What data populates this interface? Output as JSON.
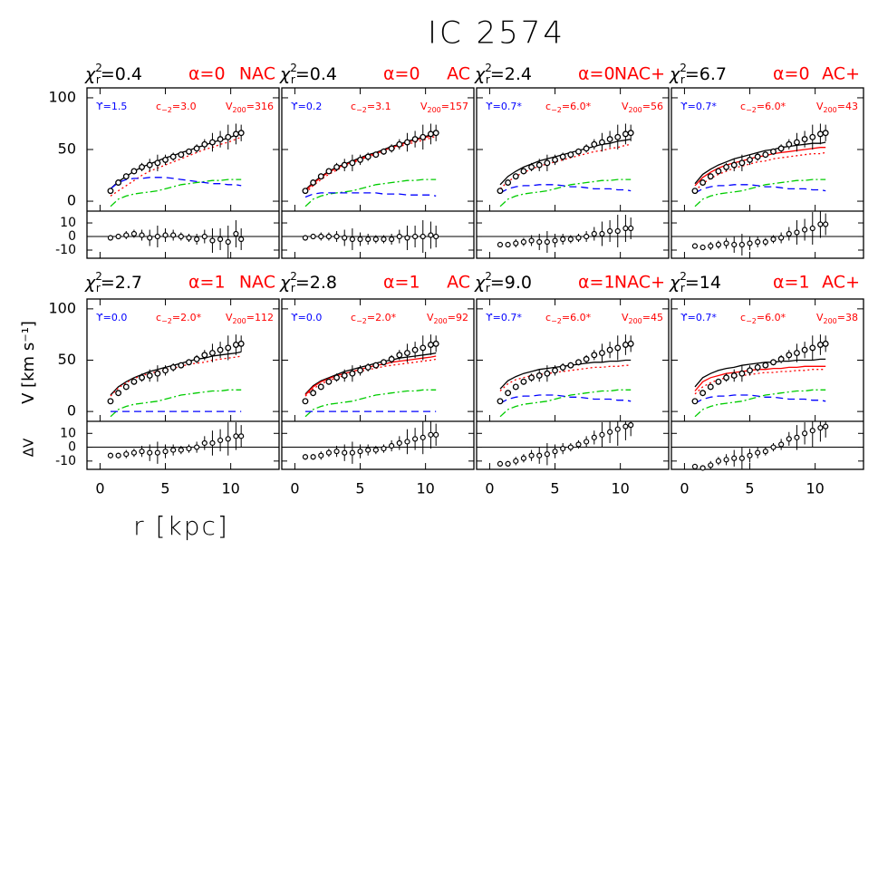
{
  "chart_data": {
    "type": "rotation-curve-panels",
    "title": "IC 2574",
    "x_label": "r [kpc]",
    "y_label": "V [km s⁻¹]",
    "residual_label": "ΔV",
    "chi_symbol": "χ",
    "chi_sup": "2",
    "chi_sub": "r",
    "c_symbol": "c",
    "c_sub": "−2",
    "v_symbol": "V",
    "v_sub": "200",
    "xlim": [
      -1,
      13.7
    ],
    "xticks": [
      0,
      5,
      10
    ],
    "ylim": [
      -9.6,
      109.6
    ],
    "yticks": [
      0,
      50,
      100
    ],
    "residual_ylim": [
      -16,
      18.7
    ],
    "residual_yticks": [
      -10,
      0,
      10
    ],
    "x": [
      0.8,
      1.4,
      2.0,
      2.6,
      3.2,
      3.8,
      4.4,
      5.0,
      5.6,
      6.2,
      6.8,
      7.4,
      8.0,
      8.6,
      9.2,
      9.8,
      10.4,
      10.8
    ],
    "observed": [
      10,
      18,
      24,
      29,
      33,
      35,
      37,
      40,
      43,
      45,
      48,
      51,
      55,
      57,
      60,
      62,
      65,
      66
    ],
    "errors": [
      2,
      2,
      3,
      3,
      4,
      6,
      8,
      5,
      4,
      3,
      3,
      4,
      5,
      9,
      8,
      12,
      10,
      8
    ],
    "gas": {
      "color": "#00cc00",
      "dash": "8,3,2,3",
      "values": [
        -5,
        2,
        5,
        7,
        8,
        9,
        10,
        12,
        14,
        16,
        17,
        18,
        19,
        20,
        20,
        21,
        21,
        21
      ]
    },
    "panels": [
      {
        "chi2": "=0.4",
        "alpha": "α=0",
        "model": "NAC",
        "upsilon": "ϒ=1.5",
        "c": "=3.0",
        "v200": "=316",
        "series": [
          {
            "color": "#000000",
            "dash": "none",
            "values": [
              12,
              19,
              24,
              29,
              33,
              36,
              39,
              42,
              44,
              47,
              49,
              52,
              54,
              57,
              59,
              61,
              64,
              65
            ]
          },
          {
            "color": "#ff0000",
            "dash": "2,3",
            "values": [
              5,
              10,
              15,
              20,
              25,
              29,
              32,
              35,
              38,
              41,
              44,
              47,
              50,
              52,
              55,
              57,
              60,
              62
            ]
          },
          {
            "color": "#0000ff",
            "dash": "8,5",
            "values": [
              12,
              18,
              21,
              22,
              22,
              23,
              23,
              23,
              22,
              21,
              20,
              19,
              18,
              17,
              17,
              16,
              16,
              15
            ]
          }
        ],
        "residuals": [
          -1,
          0,
          1,
          2,
          1,
          -1,
          0,
          1,
          1,
          0,
          -1,
          -2,
          0,
          -3,
          -2,
          -4,
          2,
          -2
        ]
      },
      {
        "chi2": "=0.4",
        "alpha": "α=0",
        "model": "AC",
        "upsilon": "ϒ=0.2",
        "c": "=3.1",
        "v200": "=157",
        "series": [
          {
            "color": "#000000",
            "dash": "none",
            "values": [
              11,
              18,
              24,
              29,
              33,
              36,
              39,
              42,
              45,
              47,
              50,
              53,
              55,
              58,
              60,
              62,
              64,
              66
            ]
          },
          {
            "color": "#ff0000",
            "dash": "none",
            "values": [
              10,
              17,
              23,
              28,
              32,
              35,
              38,
              41,
              44,
              46,
              49,
              52,
              54,
              57,
              59,
              61,
              63,
              65
            ]
          },
          {
            "color": "#ff0000",
            "dash": "2,3",
            "values": [
              8,
              15,
              21,
              26,
              30,
              34,
              37,
              40,
              43,
              45,
              48,
              50,
              53,
              55,
              57,
              59,
              61,
              63
            ]
          },
          {
            "color": "#0000ff",
            "dash": "8,5",
            "values": [
              4,
              7,
              8,
              8,
              8,
              8,
              8,
              8,
              8,
              8,
              7,
              7,
              7,
              6,
              6,
              6,
              6,
              5
            ]
          }
        ],
        "residuals": [
          -1,
          0,
          0,
          0,
          0,
          -1,
          -2,
          -2,
          -2,
          -2,
          -2,
          -2,
          0,
          -1,
          0,
          0,
          1,
          0
        ]
      },
      {
        "chi2": "=2.4",
        "alpha": "α=0",
        "model": "NAC+",
        "upsilon": "ϒ=0.7*",
        "c": "=6.0*",
        "v200": "=56",
        "series": [
          {
            "color": "#000000",
            "dash": "none",
            "values": [
              16,
              24,
              29,
              33,
              36,
              39,
              41,
              43,
              45,
              47,
              49,
              51,
              53,
              55,
              56,
              58,
              59,
              60
            ]
          },
          {
            "color": "#ff0000",
            "dash": "2,3",
            "values": [
              12,
              19,
              24,
              28,
              31,
              34,
              36,
              38,
              40,
              42,
              44,
              46,
              48,
              49,
              51,
              52,
              54,
              55
            ]
          },
          {
            "color": "#0000ff",
            "dash": "8,5",
            "values": [
              8,
              12,
              14,
              15,
              15,
              16,
              16,
              16,
              15,
              14,
              14,
              13,
              12,
              12,
              12,
              11,
              11,
              10
            ]
          }
        ],
        "residuals": [
          -6,
          -6,
          -5,
          -4,
          -3,
          -4,
          -4,
          -3,
          -2,
          -2,
          -1,
          0,
          2,
          2,
          4,
          4,
          6,
          6
        ]
      },
      {
        "chi2": "=6.7",
        "alpha": "α=0",
        "model": "AC+",
        "upsilon": "ϒ=0.7*",
        "c": "=6.0*",
        "v200": "=43",
        "series": [
          {
            "color": "#000000",
            "dash": "none",
            "values": [
              17,
              26,
              31,
              35,
              38,
              41,
              43,
              45,
              47,
              49,
              50,
              52,
              53,
              54,
              55,
              56,
              56,
              57
            ]
          },
          {
            "color": "#ff0000",
            "dash": "none",
            "values": [
              15,
              23,
              28,
              32,
              35,
              37,
              39,
              41,
              43,
              44,
              46,
              47,
              48,
              49,
              50,
              51,
              52,
              52
            ]
          },
          {
            "color": "#ff0000",
            "dash": "2,3",
            "values": [
              10,
              17,
              22,
              26,
              29,
              32,
              34,
              36,
              38,
              39,
              41,
              42,
              43,
              44,
              45,
              46,
              46,
              47
            ]
          },
          {
            "color": "#0000ff",
            "dash": "8,5",
            "values": [
              8,
              12,
              14,
              15,
              15,
              16,
              16,
              16,
              15,
              14,
              14,
              13,
              12,
              12,
              12,
              11,
              11,
              10
            ]
          }
        ],
        "residuals": [
          -7,
          -8,
          -7,
          -6,
          -5,
          -6,
          -6,
          -5,
          -4,
          -4,
          -2,
          -1,
          2,
          3,
          5,
          6,
          9,
          9
        ]
      },
      {
        "chi2": "=2.7",
        "alpha": "α=1",
        "model": "NAC",
        "upsilon": "ϒ=0.0",
        "c": "=2.0*",
        "v200": "=112",
        "series": [
          {
            "color": "#000000",
            "dash": "none",
            "values": [
              16,
              24,
              29,
              33,
              36,
              39,
              41,
              43,
              45,
              47,
              49,
              51,
              52,
              54,
              55,
              56,
              57,
              58
            ]
          },
          {
            "color": "#ff0000",
            "dash": "2,3",
            "values": [
              15,
              23,
              28,
              32,
              35,
              37,
              39,
              41,
              42,
              44,
              46,
              47,
              48,
              50,
              51,
              52,
              53,
              54
            ]
          },
          {
            "color": "#0000ff",
            "dash": "8,5",
            "values": [
              0,
              0,
              0,
              0,
              0,
              0,
              0,
              0,
              0,
              0,
              0,
              0,
              0,
              0,
              0,
              0,
              0,
              0
            ]
          }
        ],
        "residuals": [
          -6,
          -6,
          -5,
          -4,
          -3,
          -4,
          -4,
          -3,
          -2,
          -2,
          -1,
          0,
          3,
          3,
          5,
          6,
          8,
          8
        ]
      },
      {
        "chi2": "=2.8",
        "alpha": "α=1",
        "model": "AC",
        "upsilon": "ϒ=0.0",
        "c": "=2.0*",
        "v200": "=92",
        "series": [
          {
            "color": "#000000",
            "dash": "none",
            "values": [
              17,
              25,
              30,
              33,
              36,
              39,
              41,
              43,
              45,
              47,
              49,
              50,
              52,
              53,
              54,
              55,
              56,
              57
            ]
          },
          {
            "color": "#ff0000",
            "dash": "none",
            "values": [
              16,
              24,
              29,
              32,
              35,
              37,
              39,
              41,
              43,
              45,
              46,
              48,
              49,
              50,
              51,
              52,
              53,
              54
            ]
          },
          {
            "color": "#ff0000",
            "dash": "2,3",
            "values": [
              15,
              22,
              27,
              30,
              33,
              35,
              37,
              39,
              41,
              42,
              44,
              45,
              46,
              47,
              48,
              49,
              50,
              51
            ]
          },
          {
            "color": "#0000ff",
            "dash": "8,5",
            "values": [
              0,
              0,
              0,
              0,
              0,
              0,
              0,
              0,
              0,
              0,
              0,
              0,
              0,
              0,
              0,
              0,
              0,
              0
            ]
          }
        ],
        "residuals": [
          -7,
          -7,
          -6,
          -4,
          -3,
          -4,
          -4,
          -3,
          -2,
          -2,
          -1,
          1,
          3,
          4,
          6,
          7,
          9,
          9
        ]
      },
      {
        "chi2": "=9.0",
        "alpha": "α=1",
        "model": "NAC+",
        "upsilon": "ϒ=0.7*",
        "c": "=6.0*",
        "v200": "=45",
        "series": [
          {
            "color": "#000000",
            "dash": "none",
            "values": [
              22,
              30,
              34,
              37,
              39,
              41,
              42,
              43,
              44,
              45,
              46,
              47,
              48,
              48,
              49,
              49,
              50,
              50
            ]
          },
          {
            "color": "#ff0000",
            "dash": "2,3",
            "values": [
              20,
              27,
              31,
              33,
              35,
              36,
              37,
              38,
              39,
              40,
              41,
              42,
              43,
              43,
              44,
              44,
              45,
              45
            ]
          },
          {
            "color": "#0000ff",
            "dash": "8,5",
            "values": [
              8,
              12,
              14,
              15,
              15,
              16,
              16,
              16,
              15,
              14,
              14,
              13,
              12,
              12,
              12,
              11,
              11,
              10
            ]
          }
        ],
        "residuals": [
          -12,
          -12,
          -10,
          -8,
          -6,
          -6,
          -5,
          -3,
          -1,
          0,
          2,
          4,
          7,
          9,
          11,
          13,
          15,
          16
        ]
      },
      {
        "chi2": "=14",
        "alpha": "α=1",
        "model": "AC+",
        "upsilon": "ϒ=0.7*",
        "c": "=6.0*",
        "v200": "=38",
        "series": [
          {
            "color": "#000000",
            "dash": "none",
            "values": [
              24,
              33,
              37,
              40,
              42,
              43,
              45,
              46,
              47,
              48,
              48,
              49,
              49,
              50,
              50,
              50,
              51,
              51
            ]
          },
          {
            "color": "#ff0000",
            "dash": "none",
            "values": [
              20,
              29,
              33,
              35,
              37,
              38,
              39,
              40,
              41,
              41,
              42,
              42,
              43,
              43,
              44,
              44,
              44,
              44
            ]
          },
          {
            "color": "#ff0000",
            "dash": "2,3",
            "values": [
              17,
              24,
              28,
              31,
              33,
              34,
              35,
              36,
              37,
              38,
              38,
              39,
              39,
              40,
              40,
              41,
              41,
              41
            ]
          },
          {
            "color": "#0000ff",
            "dash": "8,5",
            "values": [
              8,
              12,
              14,
              15,
              15,
              16,
              16,
              16,
              15,
              14,
              14,
              13,
              12,
              12,
              12,
              11,
              11,
              10
            ]
          }
        ],
        "residuals": [
          -14,
          -15,
          -13,
          -10,
          -9,
          -8,
          -8,
          -6,
          -4,
          -3,
          0,
          2,
          6,
          7,
          10,
          12,
          14,
          15
        ]
      }
    ]
  }
}
